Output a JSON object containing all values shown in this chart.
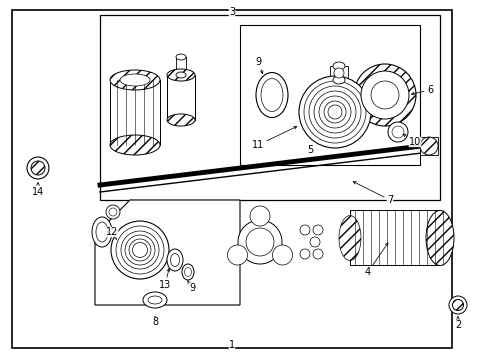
{
  "bg_color": "#ffffff",
  "line_color": "#000000",
  "text_color": "#000000",
  "fig_width": 4.89,
  "fig_height": 3.6,
  "dpi": 100
}
